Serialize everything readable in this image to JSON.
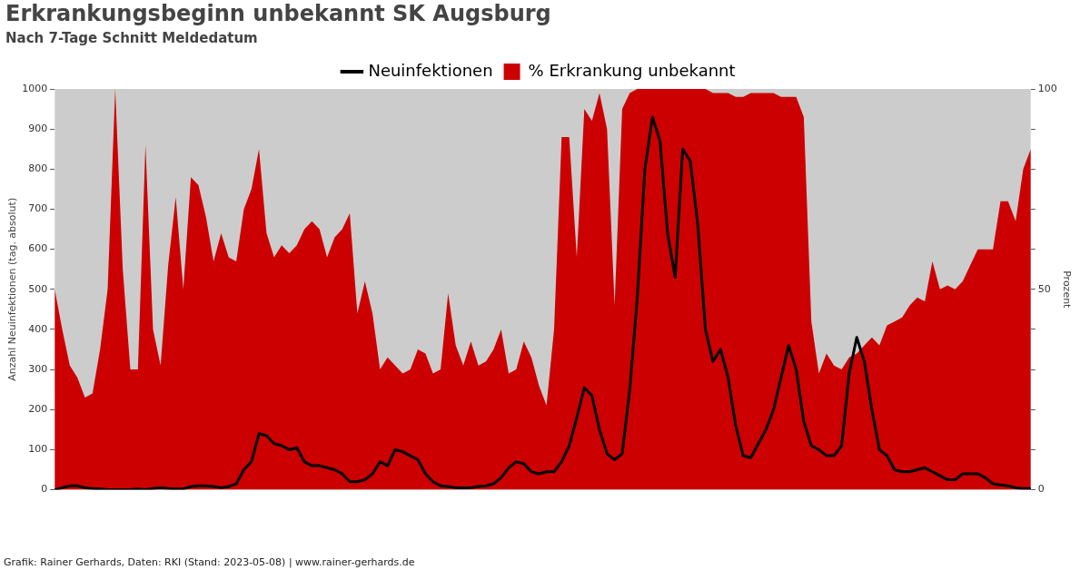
{
  "chart_data": {
    "type": "line",
    "title": "Erkrankungsbeginn unbekannt SK Augsburg",
    "subtitle": "Nach 7-Tage Schnitt Meldedatum",
    "ylabel": "Anzahl Neuinfektionen (tag. absolut)",
    "y2label": "Prozent",
    "annotations": [
      "Grafik: Rainer Gerhards, Daten: RKI (Stand: 2023-05-08) | www.rainer-gerhards.de"
    ],
    "categories": [
      null,
      null,
      null,
      null,
      null,
      null,
      null,
      null,
      null,
      null,
      null,
      null,
      null,
      null,
      null,
      null,
      null,
      null,
      null,
      null,
      null,
      null,
      null,
      null,
      null,
      null,
      null,
      null,
      null,
      null,
      null,
      null,
      null,
      null,
      null,
      null,
      null,
      null,
      null,
      null,
      null,
      null,
      null,
      null,
      null,
      null,
      null,
      null,
      null,
      null,
      null,
      null,
      null,
      null,
      null,
      null,
      null,
      null,
      null,
      null,
      null,
      null,
      null,
      null,
      null,
      null,
      null,
      null,
      null,
      null,
      null,
      null,
      null,
      null,
      null,
      null,
      null,
      null,
      null,
      null,
      null,
      null,
      null,
      null,
      null,
      null,
      null,
      null,
      null,
      null,
      null,
      null,
      null,
      null,
      null,
      null,
      null,
      null,
      null,
      null,
      null,
      null,
      null,
      null,
      null,
      null,
      null,
      null,
      null,
      null,
      null,
      null,
      null,
      null,
      null,
      null,
      null,
      null,
      null,
      null,
      null,
      null,
      null,
      null,
      null,
      null,
      null,
      null,
      null,
      null
    ],
    "series": [
      {
        "name": "Neuinfektionen",
        "color": "#000000",
        "values": [
          0,
          5,
          10,
          10,
          5,
          3,
          2,
          0,
          0,
          0,
          0,
          2,
          0,
          3,
          5,
          3,
          2,
          2,
          8,
          10,
          10,
          8,
          5,
          8,
          15,
          50,
          70,
          140,
          135,
          115,
          110,
          100,
          105,
          70,
          60,
          60,
          55,
          50,
          40,
          20,
          20,
          25,
          40,
          70,
          60,
          100,
          95,
          85,
          75,
          40,
          20,
          10,
          8,
          5,
          5,
          5,
          8,
          10,
          15,
          30,
          55,
          70,
          65,
          45,
          40,
          45,
          45,
          70,
          110,
          180,
          255,
          235,
          150,
          90,
          75,
          90,
          250,
          480,
          800,
          930,
          870,
          640,
          530,
          850,
          820,
          660,
          400,
          320,
          350,
          280,
          160,
          85,
          80,
          115,
          150,
          200,
          280,
          360,
          300,
          170,
          110,
          100,
          85,
          85,
          110,
          290,
          380,
          320,
          200,
          100,
          85,
          50,
          45,
          45,
          50,
          55,
          45,
          35,
          25,
          25,
          40,
          40,
          40,
          30,
          15,
          12,
          10,
          5,
          3,
          3
        ]
      },
      {
        "name": "% Erkrankung unbekannt",
        "type": "area",
        "axis": "y2",
        "color": "#cc0000",
        "values": [
          50,
          40,
          31,
          28,
          23,
          24,
          35,
          50,
          100,
          55,
          30,
          30,
          86,
          40,
          31,
          56,
          73,
          50,
          78,
          76,
          68,
          57,
          64,
          58,
          57,
          70,
          75,
          85,
          64,
          58,
          61,
          59,
          61,
          65,
          67,
          65,
          58,
          63,
          65,
          69,
          44,
          52,
          44,
          30,
          33,
          31,
          29,
          30,
          35,
          34,
          29,
          30,
          49,
          36,
          31,
          37,
          31,
          32,
          35,
          40,
          29,
          30,
          37,
          33,
          26,
          21,
          40,
          88,
          88,
          58,
          95,
          92,
          99,
          90,
          46,
          95,
          99,
          100,
          100,
          100,
          100,
          100,
          100,
          100,
          100,
          100,
          100,
          99,
          99,
          99,
          98,
          98,
          99,
          99,
          99,
          99,
          98,
          98,
          98,
          93,
          42,
          29,
          34,
          31,
          30,
          33,
          34,
          36,
          38,
          36,
          41,
          42,
          43,
          46,
          48,
          47,
          57,
          50,
          51,
          50,
          52,
          56,
          60,
          60,
          60,
          72,
          72,
          67,
          80,
          85
        ]
      }
    ],
    "ylim": [
      0,
      1000
    ],
    "yticks": [
      0,
      100,
      200,
      300,
      400,
      500,
      600,
      700,
      800,
      900,
      1000
    ],
    "y2lim": [
      0,
      100
    ],
    "y2ticks": [
      0,
      {
        "value": 10,
        "label": null
      },
      {
        "value": 20,
        "label": null
      },
      {
        "value": 30,
        "label": null
      },
      {
        "value": 40,
        "label": null
      },
      50,
      {
        "value": 60,
        "label": null
      },
      {
        "value": 70,
        "label": null
      },
      {
        "value": 80,
        "label": null
      },
      {
        "value": 90,
        "label": null
      },
      100
    ],
    "grid": false,
    "legend": "top",
    "marker": "none"
  }
}
